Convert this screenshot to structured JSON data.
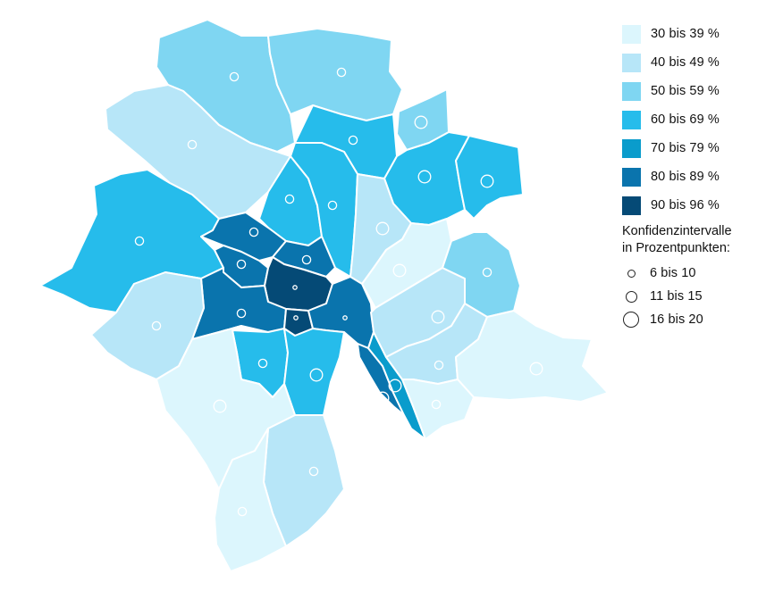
{
  "legend": {
    "classes": [
      {
        "label": "30 bis 39 %",
        "color": "#dcf6fd"
      },
      {
        "label": "40 bis 49 %",
        "color": "#b7e6f8"
      },
      {
        "label": "50 bis 59 %",
        "color": "#7fd6f2"
      },
      {
        "label": "60 bis 69 %",
        "color": "#26bceb"
      },
      {
        "label": "70 bis 79 %",
        "color": "#0a9ccc"
      },
      {
        "label": "80 bis 89 %",
        "color": "#0a74ad"
      },
      {
        "label": "90 bis 96 %",
        "color": "#054a76"
      }
    ],
    "ci_title_line1": "Konfidenzintervalle",
    "ci_title_line2": "in Prozentpunkten:",
    "ci_sizes": [
      {
        "label": "6 bis 10",
        "size": "small"
      },
      {
        "label": "11 bis 15",
        "size": "medium"
      },
      {
        "label": "16 bis 20",
        "size": "large"
      }
    ]
  },
  "map": {
    "districts": [
      {
        "id": "nw-top",
        "class": 2,
        "ci": "medium"
      },
      {
        "id": "n-top",
        "class": 2,
        "ci": "medium"
      },
      {
        "id": "nw-mid",
        "class": 1,
        "ci": "medium"
      },
      {
        "id": "n-mid",
        "class": 3,
        "ci": "medium"
      },
      {
        "id": "ne-small",
        "class": 2,
        "ci": "large"
      },
      {
        "id": "ne-a",
        "class": 3,
        "ci": "large"
      },
      {
        "id": "ne-b",
        "class": 3,
        "ci": "large"
      },
      {
        "id": "w-big",
        "class": 3,
        "ci": "medium"
      },
      {
        "id": "c-n1",
        "class": 3,
        "ci": "medium"
      },
      {
        "id": "c-n2",
        "class": 3,
        "ci": "medium"
      },
      {
        "id": "e-mid",
        "class": 1,
        "ci": "large"
      },
      {
        "id": "e-pale",
        "class": 0,
        "ci": "large"
      },
      {
        "id": "c-a",
        "class": 5,
        "ci": "medium"
      },
      {
        "id": "c-b",
        "class": 5,
        "ci": "medium"
      },
      {
        "id": "c-c",
        "class": 5,
        "ci": "medium"
      },
      {
        "id": "c-core",
        "class": 6,
        "ci": "small"
      },
      {
        "id": "c-sw",
        "class": 5,
        "ci": "medium"
      },
      {
        "id": "c-s",
        "class": 6,
        "ci": "small"
      },
      {
        "id": "c-e",
        "class": 5,
        "ci": "small"
      },
      {
        "id": "w-low",
        "class": 1,
        "ci": "medium"
      },
      {
        "id": "s-a",
        "class": 3,
        "ci": "medium"
      },
      {
        "id": "s-b",
        "class": 3,
        "ci": "large"
      },
      {
        "id": "lake-strip",
        "class": 5,
        "ci": "large"
      },
      {
        "id": "lake-strip2",
        "class": 4,
        "ci": "large"
      },
      {
        "id": "e-c",
        "class": 1,
        "ci": "large"
      },
      {
        "id": "e-d",
        "class": 2,
        "ci": "medium"
      },
      {
        "id": "e-e",
        "class": 1,
        "ci": "medium"
      },
      {
        "id": "far-e",
        "class": 0,
        "ci": "large"
      },
      {
        "id": "se-a",
        "class": 0,
        "ci": "medium"
      },
      {
        "id": "sw-a",
        "class": 0,
        "ci": "large"
      },
      {
        "id": "s-c",
        "class": 1,
        "ci": "medium"
      },
      {
        "id": "s-d",
        "class": 0,
        "ci": "medium"
      }
    ]
  }
}
